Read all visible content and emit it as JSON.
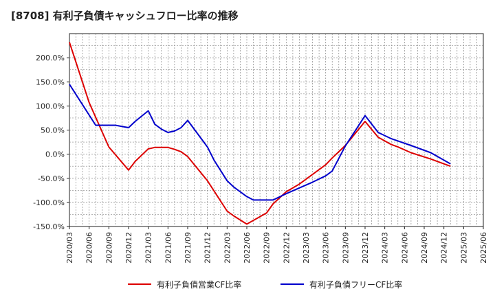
{
  "chart_data": {
    "type": "line",
    "title": "[8708]  有利子負債キャッシュフロー比率の推移",
    "xlabel": "",
    "ylabel": "",
    "ylim": [
      -150,
      250
    ],
    "yticks": [
      -150,
      -100,
      -50,
      0,
      50,
      100,
      150,
      200
    ],
    "ytick_labels": [
      "-150.0%",
      "-100.0%",
      "-50.0%",
      "0.0%",
      "50.0%",
      "100.0%",
      "150.0%",
      "200.0%"
    ],
    "xtick_labels": [
      "2020/03",
      "2020/06",
      "2020/09",
      "2020/12",
      "2021/03",
      "2021/06",
      "2021/09",
      "2021/12",
      "2022/03",
      "2022/06",
      "2022/09",
      "2022/12",
      "2023/03",
      "2023/06",
      "2023/09",
      "2023/12",
      "2024/03",
      "2024/06",
      "2024/09",
      "2024/12",
      "2025/03",
      "2025/06"
    ],
    "grid": true,
    "legend_position": "bottom",
    "colors": {
      "operating": "#dd0000",
      "free": "#0000cc"
    },
    "series": [
      {
        "name": "有利子負債営業CF比率",
        "color": "#dd0000",
        "points": [
          [
            0,
            232
          ],
          [
            3,
            107
          ],
          [
            6,
            15
          ],
          [
            9,
            -33
          ],
          [
            10,
            -15
          ],
          [
            12,
            11
          ],
          [
            13,
            14
          ],
          [
            15,
            14
          ],
          [
            16,
            10
          ],
          [
            17,
            5
          ],
          [
            18,
            -5
          ],
          [
            21,
            -55
          ],
          [
            24,
            -118
          ],
          [
            25,
            -128
          ],
          [
            27,
            -145
          ],
          [
            30,
            -122
          ],
          [
            31,
            -103
          ],
          [
            33,
            -78
          ],
          [
            35,
            -62
          ],
          [
            39,
            -22
          ],
          [
            40,
            -8
          ],
          [
            42,
            18
          ],
          [
            45,
            68
          ],
          [
            47,
            35
          ],
          [
            49,
            20
          ],
          [
            50,
            15
          ],
          [
            52,
            3
          ],
          [
            55,
            -10
          ],
          [
            58,
            -25
          ]
        ]
      },
      {
        "name": "有利子負債フリーCF比率",
        "color": "#0000cc",
        "points": [
          [
            0,
            145
          ],
          [
            4,
            60
          ],
          [
            6,
            60
          ],
          [
            7,
            60
          ],
          [
            9,
            55
          ],
          [
            10,
            68
          ],
          [
            12,
            90
          ],
          [
            13,
            62
          ],
          [
            14,
            52
          ],
          [
            15,
            45
          ],
          [
            16,
            48
          ],
          [
            17,
            55
          ],
          [
            18,
            70
          ],
          [
            21,
            15
          ],
          [
            22,
            -12
          ],
          [
            24,
            -55
          ],
          [
            25,
            -68
          ],
          [
            27,
            -88
          ],
          [
            28,
            -95
          ],
          [
            31,
            -95
          ],
          [
            33,
            -82
          ],
          [
            35,
            -70
          ],
          [
            37,
            -58
          ],
          [
            39,
            -45
          ],
          [
            40,
            -35
          ],
          [
            42,
            17
          ],
          [
            45,
            80
          ],
          [
            47,
            45
          ],
          [
            49,
            32
          ],
          [
            52,
            18
          ],
          [
            55,
            3
          ],
          [
            58,
            -20
          ]
        ]
      }
    ]
  }
}
